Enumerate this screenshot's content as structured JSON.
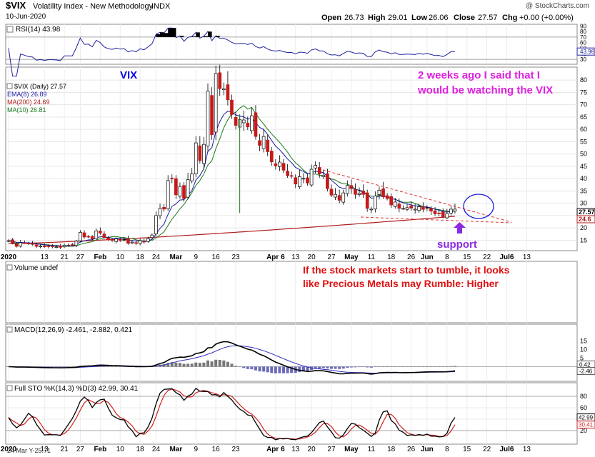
{
  "header": {
    "symbol": "$VIX",
    "name": "Volatility Index - New Methodology",
    "exchange": "INDX",
    "date": "10-Jun-2020",
    "watermark": "@ StockCharts.com",
    "ohlc": {
      "open_label": "Open",
      "open": "26.73",
      "high_label": "High",
      "high": "29.01",
      "low_label": "Low",
      "low": "26.06",
      "close_label": "Close",
      "close": "27.57",
      "chg_label": "Chg",
      "chg": "+0.00 (+0.00%)"
    }
  },
  "annotations": {
    "vix_label": "VIX",
    "note_1_line1": "2 weeks ago I said that I",
    "note_1_line2": "would be watching the VIX",
    "note_2_line1": "If the stock markets start to tumble, it looks",
    "note_2_line2": "like Precious Metals may Rumble: Higher",
    "support": "support"
  },
  "panels": {
    "rsi_label": "RSI(14) 43.98",
    "price_legend": [
      {
        "text": "$VIX (Daily) 27.57",
        "color": "#000000"
      },
      {
        "text": "EMA(8) 26.89",
        "color": "#1a1aa6"
      },
      {
        "text": "MA(200) 24.69",
        "color": "#b01c1c"
      },
      {
        "text": "MA(10) 26.81",
        "color": "#1a7a1a"
      }
    ],
    "volume_label": "Volume undef",
    "macd_label": "MACD(12,26,9) -2.461, -2.882, 0.421",
    "sto_label": "Full STO %K(14,3) %D(3) 42.99, 30.41",
    "bottom_note": "24 Mar Y-25.71"
  },
  "chart_data": {
    "type": "candlestick",
    "dates": [
      "Dec-30",
      "Dec-31",
      "Jan-2",
      "Jan-3",
      "Jan-6",
      "Jan-7",
      "Jan-8",
      "Jan-9",
      "Jan-10",
      "Jan-13",
      "Jan-14",
      "Jan-15",
      "Jan-16",
      "Jan-17",
      "Jan-21",
      "Jan-22",
      "Jan-23",
      "Jan-24",
      "Jan-27",
      "Jan-28",
      "Jan-29",
      "Jan-30",
      "Jan-31",
      "Feb-3",
      "Feb-4",
      "Feb-5",
      "Feb-6",
      "Feb-7",
      "Feb-10",
      "Feb-11",
      "Feb-12",
      "Feb-13",
      "Feb-14",
      "Feb-18",
      "Feb-19",
      "Feb-20",
      "Feb-21",
      "Feb-24",
      "Feb-25",
      "Feb-26",
      "Feb-27",
      "Feb-28",
      "Mar-2",
      "Mar-3",
      "Mar-4",
      "Mar-5",
      "Mar-6",
      "Mar-9",
      "Mar-10",
      "Mar-11",
      "Mar-12",
      "Mar-13",
      "Mar-16",
      "Mar-17",
      "Mar-18",
      "Mar-19",
      "Mar-20",
      "Mar-23",
      "Mar-24",
      "Mar-25",
      "Mar-26",
      "Mar-27",
      "Mar-30",
      "Mar-31",
      "Apr-1",
      "Apr-2",
      "Apr-3",
      "Apr-6",
      "Apr-7",
      "Apr-8",
      "Apr-9",
      "Apr-13",
      "Apr-14",
      "Apr-15",
      "Apr-16",
      "Apr-17",
      "Apr-20",
      "Apr-21",
      "Apr-22",
      "Apr-23",
      "Apr-24",
      "Apr-27",
      "Apr-28",
      "Apr-29",
      "Apr-30",
      "May-1",
      "May-4",
      "May-5",
      "May-6",
      "May-7",
      "May-8",
      "May-11",
      "May-12",
      "May-13",
      "May-14",
      "May-15",
      "May-18",
      "May-19",
      "May-20",
      "May-21",
      "May-22",
      "May-26",
      "May-27",
      "May-28",
      "May-29",
      "Jun-1",
      "Jun-2",
      "Jun-3",
      "Jun-4",
      "Jun-5",
      "Jun-8",
      "Jun-9",
      "Jun-10"
    ],
    "close": [
      14.8,
      13.8,
      12.5,
      14.0,
      13.8,
      13.5,
      13.4,
      12.5,
      12.6,
      12.3,
      12.4,
      12.4,
      12.3,
      12.1,
      12.9,
      12.9,
      12.9,
      14.6,
      18.2,
      16.3,
      16.4,
      15.5,
      18.8,
      17.9,
      16.1,
      15.2,
      14.9,
      15.5,
      15.0,
      15.2,
      13.7,
      14.2,
      13.7,
      14.8,
      14.4,
      15.6,
      17.1,
      25.0,
      27.9,
      27.6,
      39.2,
      40.1,
      33.4,
      36.8,
      31.9,
      39.6,
      41.9,
      54.5,
      47.3,
      53.9,
      75.5,
      57.8,
      82.7,
      76.5,
      76.4,
      72.0,
      66.0,
      61.6,
      63.9,
      63.8,
      61.0,
      65.5,
      57.1,
      53.5,
      57.1,
      50.9,
      46.8,
      45.2,
      46.7,
      43.4,
      41.2,
      41.2,
      37.8,
      40.8,
      40.1,
      38.2,
      43.8,
      45.4,
      41.9,
      41.4,
      35.9,
      33.3,
      33.6,
      31.2,
      34.2,
      37.2,
      35.9,
      33.6,
      34.1,
      33.6,
      27.9,
      27.6,
      33.0,
      35.3,
      32.6,
      31.9,
      29.3,
      30.5,
      27.9,
      27.9,
      28.2,
      28.0,
      27.6,
      28.6,
      27.5,
      28.2,
      26.8,
      25.7,
      25.8,
      24.5,
      25.8,
      27.6,
      27.6
    ],
    "volume": "undef",
    "rsi_value": 43.98,
    "ema8": 26.89,
    "ma200": 24.69,
    "ma10": 26.81,
    "macd": {
      "macd": -2.461,
      "signal": -2.882,
      "hist": 0.421
    },
    "sto": {
      "k": 42.99,
      "d": 30.41
    },
    "price_axis_ticks": [
      15,
      20,
      25,
      30,
      35,
      40,
      45,
      50,
      55,
      60,
      65,
      70,
      75,
      80
    ],
    "price_axis_tags": [
      "27.57",
      "24.6"
    ],
    "rsi_axis_ticks": [
      30,
      40,
      50,
      60,
      70,
      80,
      90
    ],
    "rsi_axis_tag": "43.98",
    "macd_axis_ticks": [
      5,
      10,
      15
    ],
    "macd_axis_tags": [
      "0.42",
      "-2.46"
    ],
    "sto_axis_ticks": [
      20,
      40,
      60,
      80
    ],
    "sto_axis_tags": [
      "42.99",
      "30.41"
    ],
    "x_axis_labels": [
      {
        "i": 0,
        "t": "2020"
      },
      {
        "i": 9,
        "t": "13"
      },
      {
        "i": 14,
        "t": "21"
      },
      {
        "i": 18,
        "t": "27"
      },
      {
        "i": 23,
        "t": "Feb"
      },
      {
        "i": 28,
        "t": "10"
      },
      {
        "i": 33,
        "t": "18"
      },
      {
        "i": 37,
        "t": "24"
      },
      {
        "i": 42,
        "t": "Mar"
      },
      {
        "i": 47,
        "t": "9"
      },
      {
        "i": 52,
        "t": "16"
      },
      {
        "i": 57,
        "t": "23"
      },
      {
        "i": 67,
        "t": "Apr 6"
      },
      {
        "i": 72,
        "t": "13"
      },
      {
        "i": 76,
        "t": "20"
      },
      {
        "i": 81,
        "t": "27"
      },
      {
        "i": 86,
        "t": "May"
      },
      {
        "i": 91,
        "t": "11"
      },
      {
        "i": 96,
        "t": "18"
      },
      {
        "i": 101,
        "t": "26"
      },
      {
        "i": 105,
        "t": "Jun"
      },
      {
        "i": 110,
        "t": "8"
      },
      {
        "i": 115,
        "t": "15"
      },
      {
        "i": 120,
        "t": "22"
      },
      {
        "i": 125,
        "t": "Jul6"
      },
      {
        "i": 130,
        "t": "13"
      }
    ],
    "colors": {
      "up": "#ffffff",
      "down": "#c41a1a",
      "ema": "#1a1aa6",
      "ma200": "#b01c1c",
      "ma10": "#1a7a1a",
      "annotation_blue": "#0000ee",
      "annotation_magenta": "#e020e0",
      "annotation_red": "#e01010",
      "support_purple": "#8a2be2",
      "trend": "#e03030"
    }
  }
}
